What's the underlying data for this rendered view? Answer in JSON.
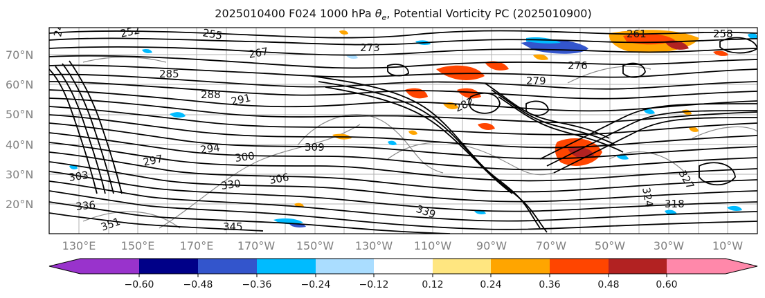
{
  "title_main": "2025010400 F024 1000 hPa ",
  "title_symbol": "θ",
  "title_subscript": "e",
  "title_rest": ", Potential Vorticity PC (2025010900)",
  "lat_labels": [
    "70°N",
    "60°N",
    "50°N",
    "40°N",
    "30°N",
    "20°N"
  ],
  "lon_labels": [
    "130°E",
    "150°E",
    "170°E",
    "170°W",
    "150°W",
    "130°W",
    "110°W",
    "90°W",
    "70°W",
    "50°W",
    "30°W",
    "10°W"
  ],
  "contour_labels": [
    "246",
    "252",
    "255",
    "258",
    "261",
    "267",
    "273",
    "276",
    "279",
    "282",
    "285",
    "288",
    "291",
    "294",
    "297",
    "300",
    "303",
    "306",
    "309",
    "318",
    "324",
    "327",
    "330",
    "336",
    "339",
    "345",
    "351"
  ],
  "colorbar": {
    "tick_labels": [
      "−0.60",
      "−0.48",
      "−0.36",
      "−0.24",
      "−0.12",
      "0.12",
      "0.24",
      "0.36",
      "0.48",
      "0.60"
    ],
    "colors": [
      "#9933cc",
      "#000088",
      "#3355cc",
      "#00bbff",
      "#aaddff",
      "#ffffff",
      "#ffe680",
      "#ffa500",
      "#ff4500",
      "#b22222",
      "#ff88aa"
    ]
  },
  "map": {
    "lat_range": [
      10,
      80
    ],
    "lon_range": [
      120,
      360
    ],
    "pv_fill_colors": {
      "positive_weak": "#ffa500",
      "positive_mid": "#ff4500",
      "positive_strong": "#b22222",
      "negative_weak": "#00bbff",
      "negative_mid": "#3355cc",
      "light_negative": "#aaddff"
    }
  }
}
